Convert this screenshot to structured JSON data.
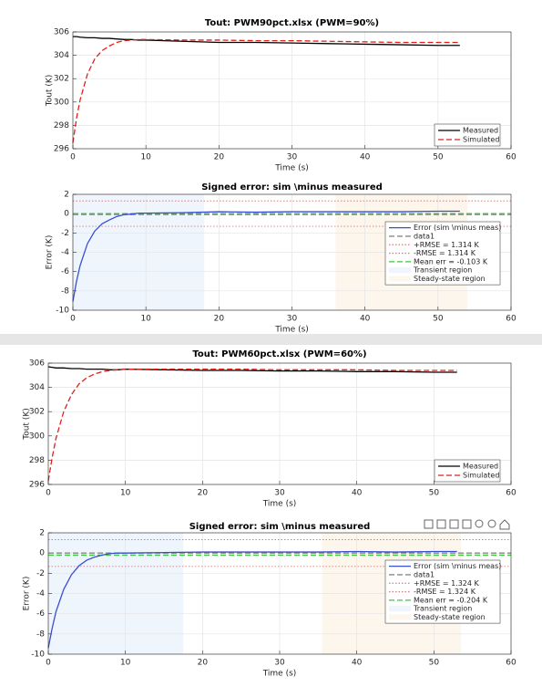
{
  "chart_data": [
    {
      "type": "line",
      "title": "Tout:  PWM90pct.xlsx   (PWM=90%)",
      "xlabel": "Time (s)",
      "ylabel": "Tout (K)",
      "x": [
        0,
        0.5,
        1,
        2,
        3,
        4,
        5,
        6,
        7,
        8,
        9,
        10,
        15,
        20,
        25,
        30,
        35,
        40,
        45,
        50,
        53
      ],
      "series": [
        {
          "name": "Measured",
          "color": "#000000",
          "style": "solid",
          "values": [
            305.6,
            305.6,
            305.55,
            305.5,
            305.5,
            305.45,
            305.45,
            305.4,
            305.35,
            305.35,
            305.3,
            305.3,
            305.2,
            305.1,
            305.1,
            305.05,
            305.0,
            304.95,
            304.9,
            304.85,
            304.85
          ]
        },
        {
          "name": "Simulated",
          "color": "#e0201b",
          "style": "dashed",
          "values": [
            296.5,
            298.6,
            300.2,
            302.4,
            303.7,
            304.4,
            304.8,
            305.1,
            305.25,
            305.3,
            305.35,
            305.35,
            305.3,
            305.3,
            305.25,
            305.25,
            305.2,
            305.15,
            305.1,
            305.1,
            305.1
          ]
        }
      ],
      "xlim": [
        0,
        60
      ],
      "ylim": [
        296,
        306
      ],
      "xticks": [
        0,
        10,
        20,
        30,
        40,
        50,
        60
      ],
      "yticks": [
        296,
        298,
        300,
        302,
        304,
        306
      ],
      "grid": true,
      "legend": "southeast"
    },
    {
      "type": "line",
      "title": "Signed error: sim \\minus measured",
      "xlabel": "Time (s)",
      "ylabel": "Error (K)",
      "x": [
        0,
        0.5,
        1,
        2,
        3,
        4,
        5,
        6,
        7,
        8,
        9,
        10,
        15,
        20,
        25,
        30,
        35,
        40,
        45,
        50,
        53
      ],
      "series": [
        {
          "name": "Error  (sim  \\minus  meas)",
          "color": "#3a4fd0",
          "style": "solid",
          "values": [
            -9.1,
            -7.0,
            -5.35,
            -3.1,
            -1.8,
            -1.05,
            -0.65,
            -0.3,
            -0.1,
            -0.05,
            0.05,
            0.05,
            0.1,
            0.2,
            0.15,
            0.2,
            0.2,
            0.2,
            0.2,
            0.25,
            0.25
          ]
        }
      ],
      "reference_lines": [
        {
          "name": "data1",
          "value": 0,
          "color": "#888888",
          "style": "dashed"
        },
        {
          "name": "+RMSE = 1.314 K",
          "value": 1.314,
          "color": "#d08080",
          "style": "dotted"
        },
        {
          "name": "-RMSE = 1.314 K",
          "value": -1.314,
          "color": "#d08080",
          "style": "dotted"
        },
        {
          "name": "Mean err = -0.103 K",
          "value": -0.103,
          "color": "#3cc83c",
          "style": "dashed"
        }
      ],
      "regions": [
        {
          "name": "Transient region",
          "range": [
            0,
            18
          ],
          "color": "#eef5fc"
        },
        {
          "name": "Steady-state region",
          "range": [
            36,
            54
          ],
          "color": "#fdf6ec"
        }
      ],
      "xlim": [
        0,
        60
      ],
      "ylim": [
        -10,
        2
      ],
      "xticks": [
        0,
        10,
        20,
        30,
        40,
        50,
        60
      ],
      "yticks": [
        -10,
        -8,
        -6,
        -4,
        -2,
        0,
        2
      ],
      "grid": true,
      "legend": "east"
    },
    {
      "type": "line",
      "title": "Tout:  PWM60pct.xlsx   (PWM=60%)",
      "xlabel": "Time (s)",
      "ylabel": "Tout (K)",
      "x": [
        0,
        0.5,
        1,
        2,
        3,
        4,
        5,
        6,
        7,
        8,
        9,
        10,
        15,
        20,
        25,
        30,
        35,
        40,
        45,
        50,
        53
      ],
      "series": [
        {
          "name": "Measured",
          "color": "#000000",
          "style": "solid",
          "values": [
            305.7,
            305.65,
            305.6,
            305.6,
            305.55,
            305.55,
            305.5,
            305.5,
            305.5,
            305.45,
            305.45,
            305.5,
            305.45,
            305.4,
            305.4,
            305.35,
            305.35,
            305.3,
            305.3,
            305.25,
            305.25
          ]
        },
        {
          "name": "Simulated",
          "color": "#e0201b",
          "style": "dashed",
          "values": [
            296.3,
            298.2,
            299.8,
            302.0,
            303.4,
            304.3,
            304.8,
            305.1,
            305.3,
            305.4,
            305.45,
            305.5,
            305.5,
            305.5,
            305.5,
            305.45,
            305.45,
            305.45,
            305.4,
            305.4,
            305.4
          ]
        }
      ],
      "xlim": [
        0,
        60
      ],
      "ylim": [
        296,
        306
      ],
      "xticks": [
        0,
        10,
        20,
        30,
        40,
        50,
        60
      ],
      "yticks": [
        296,
        298,
        300,
        302,
        304,
        306
      ],
      "grid": true,
      "legend": "southeast"
    },
    {
      "type": "line",
      "title": "Signed error: sim \\minus measured",
      "xlabel": "Time (s)",
      "ylabel": "Error (K)",
      "x": [
        0,
        0.5,
        1,
        2,
        3,
        4,
        5,
        6,
        7,
        8,
        9,
        10,
        15,
        20,
        25,
        30,
        35,
        40,
        45,
        50,
        53
      ],
      "series": [
        {
          "name": "Error  (sim  \\minus  meas)",
          "color": "#3a4fd0",
          "style": "solid",
          "values": [
            -9.4,
            -7.45,
            -5.8,
            -3.6,
            -2.15,
            -1.25,
            -0.7,
            -0.4,
            -0.2,
            -0.05,
            0.0,
            0.0,
            0.05,
            0.1,
            0.1,
            0.1,
            0.1,
            0.15,
            0.1,
            0.15,
            0.15
          ]
        }
      ],
      "reference_lines": [
        {
          "name": "data1",
          "value": 0,
          "color": "#888888",
          "style": "dashed"
        },
        {
          "name": "+RMSE = 1.324 K",
          "value": 1.324,
          "color": "#d08080",
          "style": "dotted"
        },
        {
          "name": "-RMSE = 1.324 K",
          "value": -1.324,
          "color": "#d08080",
          "style": "dotted"
        },
        {
          "name": "Mean err = -0.204 K",
          "value": -0.204,
          "color": "#3cc83c",
          "style": "dashed"
        }
      ],
      "regions": [
        {
          "name": "Transient region",
          "range": [
            0,
            17.5
          ],
          "color": "#eef5fc"
        },
        {
          "name": "Steady-state region",
          "range": [
            35.5,
            53.5
          ],
          "color": "#fdf6ec"
        }
      ],
      "xlim": [
        0,
        60
      ],
      "ylim": [
        -10,
        2
      ],
      "xticks": [
        0,
        10,
        20,
        30,
        40,
        50,
        60
      ],
      "yticks": [
        -10,
        -8,
        -6,
        -4,
        -2,
        0,
        2
      ],
      "grid": true,
      "legend": "east"
    }
  ]
}
